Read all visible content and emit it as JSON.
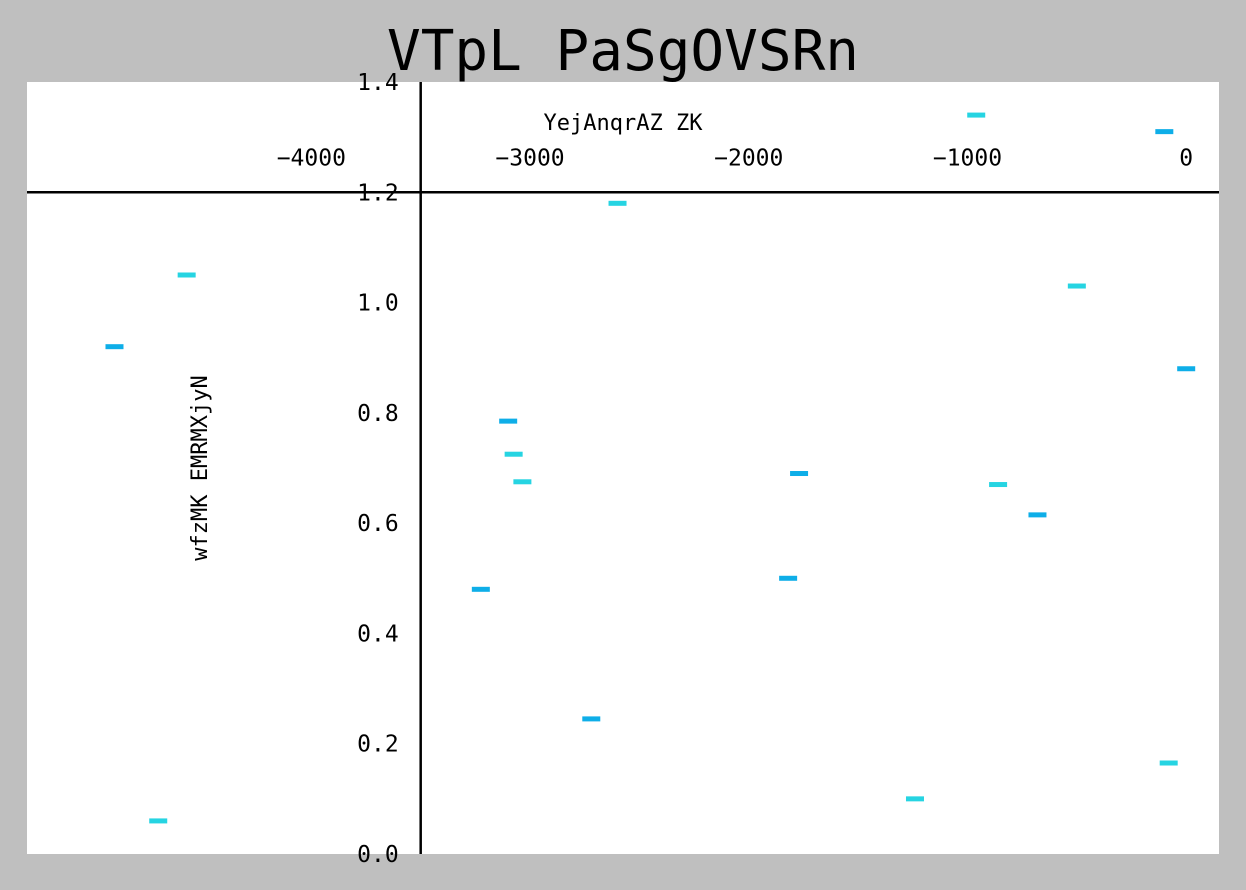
{
  "chart_data": {
    "type": "scatter",
    "title": "VTpL PaSgOVSRn",
    "xlabel": "",
    "ylabel": "wfzMK EMRMXjyN",
    "xlim": [
      -5300,
      150
    ],
    "ylim": [
      0.0,
      1.4
    ],
    "xticks": [
      -4000,
      -3000,
      -2000,
      -1000,
      0
    ],
    "xtick_labels": [
      "−4000",
      "−3000",
      "−2000",
      "−1000",
      "0"
    ],
    "yticks": [
      0.0,
      0.2,
      0.4,
      0.6,
      0.8,
      1.0,
      1.2,
      1.4
    ],
    "ytick_labels": [
      "0.0",
      "0.2",
      "0.4",
      "0.6",
      "0.8",
      "1.0",
      "1.2",
      "1.4"
    ],
    "x_axis_at_y": 1.2,
    "y_axis_at_x": -3500,
    "marker": "hline",
    "legend": {
      "title": "YejAnqrAZ ZK",
      "position": "top",
      "entries": []
    },
    "series": [
      {
        "color": "#0eaee8",
        "points": [
          {
            "x": -4900,
            "y": 0.92
          },
          {
            "x": -3225,
            "y": 0.48
          },
          {
            "x": -3100,
            "y": 0.785
          },
          {
            "x": -2720,
            "y": 0.245
          },
          {
            "x": -1820,
            "y": 0.5
          },
          {
            "x": -1770,
            "y": 0.69
          },
          {
            "x": -680,
            "y": 0.615
          },
          {
            "x": -100,
            "y": 1.31
          },
          {
            "x": 0,
            "y": 0.88
          }
        ]
      },
      {
        "color": "#26d4e2",
        "points": [
          {
            "x": -4700,
            "y": 0.06
          },
          {
            "x": -4570,
            "y": 1.05
          },
          {
            "x": -3075,
            "y": 0.725
          },
          {
            "x": -3035,
            "y": 0.675
          },
          {
            "x": -2600,
            "y": 1.18
          },
          {
            "x": -1240,
            "y": 0.1
          },
          {
            "x": -960,
            "y": 1.34
          },
          {
            "x": -860,
            "y": 0.67
          },
          {
            "x": -500,
            "y": 1.03
          },
          {
            "x": -80,
            "y": 0.165
          }
        ]
      }
    ]
  }
}
